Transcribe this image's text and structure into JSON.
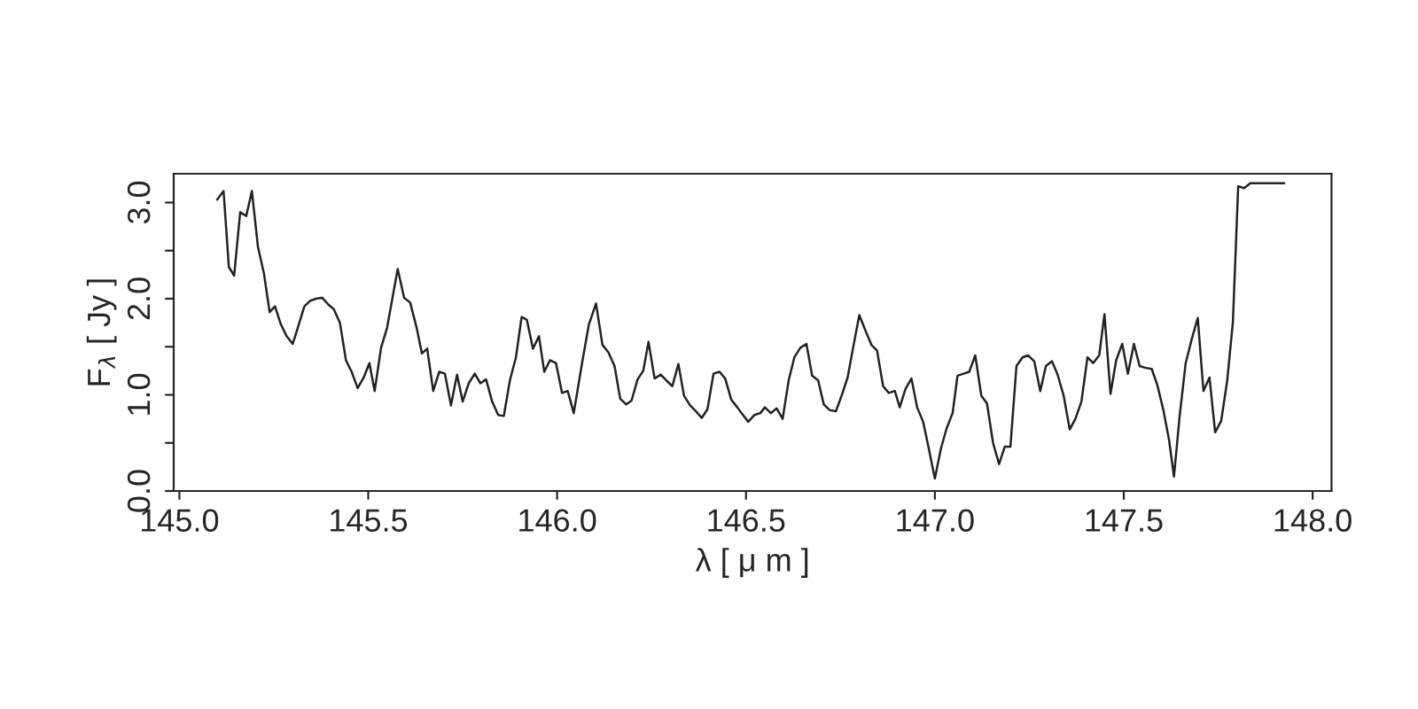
{
  "chart_data": {
    "type": "line",
    "xlabel": "λ [ μ m ]",
    "ylabel": "F$_{λ}$ [ Jy ]",
    "xlim": [
      144.985,
      148.05
    ],
    "ylim": [
      0,
      3.3
    ],
    "xticks": [
      {
        "value": 145,
        "label": "145.0"
      },
      {
        "value": 145.5,
        "label": "145.5"
      },
      {
        "value": 146,
        "label": "146.0"
      },
      {
        "value": 146.5,
        "label": "146.5"
      },
      {
        "value": 147,
        "label": "147.0"
      },
      {
        "value": 147.5,
        "label": "147.5"
      },
      {
        "value": 148,
        "label": "148.0"
      }
    ],
    "yticks": [
      {
        "value": 0,
        "label": "0.0"
      },
      {
        "value": 0.5,
        "label": null
      },
      {
        "value": 1,
        "label": "1.0"
      },
      {
        "value": 1.5,
        "label": null
      },
      {
        "value": 2,
        "label": "2.0"
      },
      {
        "value": 2.5,
        "label": null
      },
      {
        "value": 3,
        "label": "3.0"
      }
    ],
    "grid": false,
    "legend": false,
    "marker": "none",
    "line_style": "solid",
    "series": [
      {
        "color": "#222222",
        "x": [
          145.1,
          145.117,
          145.131,
          145.145,
          145.161,
          145.177,
          145.192,
          145.208,
          145.224,
          145.239,
          145.253,
          145.269,
          145.284,
          145.3,
          145.316,
          145.331,
          145.347,
          145.362,
          145.378,
          145.394,
          145.409,
          145.425,
          145.441,
          145.456,
          145.472,
          145.488,
          145.503,
          145.517,
          145.534,
          145.55,
          145.578,
          145.595,
          145.611,
          145.628,
          145.642,
          145.656,
          145.672,
          145.688,
          145.703,
          145.719,
          145.735,
          145.75,
          145.766,
          145.782,
          145.797,
          145.812,
          145.828,
          145.844,
          145.859,
          145.875,
          145.891,
          145.906,
          145.92,
          145.936,
          145.952,
          145.966,
          145.981,
          145.997,
          146.013,
          146.028,
          146.044,
          146.066,
          146.084,
          146.103,
          146.12,
          146.136,
          146.152,
          146.167,
          146.183,
          146.197,
          146.213,
          146.228,
          146.242,
          146.258,
          146.274,
          146.289,
          146.305,
          146.321,
          146.336,
          146.352,
          146.367,
          146.383,
          146.398,
          146.414,
          146.43,
          146.445,
          146.461,
          146.477,
          146.492,
          146.506,
          146.522,
          146.538,
          146.55,
          146.566,
          146.581,
          146.597,
          146.613,
          146.628,
          146.644,
          146.66,
          146.675,
          146.691,
          146.706,
          146.722,
          146.738,
          146.753,
          146.769,
          146.785,
          146.8,
          146.816,
          146.832,
          146.847,
          146.863,
          146.878,
          146.894,
          146.907,
          146.922,
          146.938,
          146.953,
          146.969,
          146.984,
          147.0,
          147.016,
          147.031,
          147.047,
          147.06,
          147.076,
          147.091,
          147.107,
          147.123,
          147.138,
          147.154,
          147.17,
          147.185,
          147.2,
          147.216,
          147.232,
          147.247,
          147.263,
          147.279,
          147.294,
          147.31,
          147.325,
          147.341,
          147.357,
          147.372,
          147.388,
          147.404,
          147.419,
          147.435,
          147.449,
          147.465,
          147.48,
          147.496,
          147.511,
          147.527,
          147.542,
          147.558,
          147.574,
          147.589,
          147.605,
          147.62,
          147.633,
          147.648,
          147.664,
          147.68,
          147.696,
          147.711,
          147.727,
          147.742,
          147.758,
          147.774,
          147.789,
          147.803,
          147.819,
          147.835,
          147.925
        ],
        "values": [
          3.03,
          3.12,
          2.33,
          2.24,
          2.9,
          2.86,
          3.12,
          2.54,
          2.26,
          1.86,
          1.92,
          1.73,
          1.61,
          1.53,
          1.73,
          1.92,
          1.98,
          2.0,
          2.01,
          1.94,
          1.89,
          1.75,
          1.36,
          1.24,
          1.07,
          1.18,
          1.33,
          1.04,
          1.49,
          1.7,
          2.31,
          2.01,
          1.96,
          1.7,
          1.43,
          1.48,
          1.04,
          1.24,
          1.22,
          0.89,
          1.21,
          0.93,
          1.12,
          1.22,
          1.12,
          1.16,
          0.93,
          0.79,
          0.78,
          1.15,
          1.39,
          1.81,
          1.78,
          1.48,
          1.61,
          1.24,
          1.36,
          1.33,
          1.02,
          1.04,
          0.81,
          1.33,
          1.73,
          1.95,
          1.52,
          1.44,
          1.3,
          0.96,
          0.9,
          0.94,
          1.16,
          1.25,
          1.55,
          1.17,
          1.21,
          1.15,
          1.09,
          1.32,
          0.99,
          0.89,
          0.83,
          0.76,
          0.85,
          1.22,
          1.24,
          1.17,
          0.95,
          0.87,
          0.79,
          0.72,
          0.79,
          0.81,
          0.87,
          0.81,
          0.86,
          0.75,
          1.15,
          1.39,
          1.49,
          1.53,
          1.2,
          1.15,
          0.9,
          0.84,
          0.83,
          0.99,
          1.18,
          1.52,
          1.83,
          1.67,
          1.52,
          1.46,
          1.09,
          1.02,
          1.04,
          0.87,
          1.06,
          1.17,
          0.87,
          0.72,
          0.44,
          0.13,
          0.44,
          0.65,
          0.81,
          1.2,
          1.22,
          1.24,
          1.41,
          0.99,
          0.91,
          0.5,
          0.28,
          0.46,
          0.46,
          1.3,
          1.39,
          1.41,
          1.35,
          1.04,
          1.3,
          1.35,
          1.21,
          0.99,
          0.64,
          0.75,
          0.93,
          1.39,
          1.33,
          1.41,
          1.84,
          1.01,
          1.36,
          1.53,
          1.22,
          1.53,
          1.3,
          1.28,
          1.27,
          1.1,
          0.84,
          0.53,
          0.15,
          0.78,
          1.33,
          1.58,
          1.8,
          1.04,
          1.18,
          0.61,
          0.73,
          1.15,
          1.76,
          3.17,
          3.15,
          3.2,
          3.2
        ]
      }
    ]
  }
}
